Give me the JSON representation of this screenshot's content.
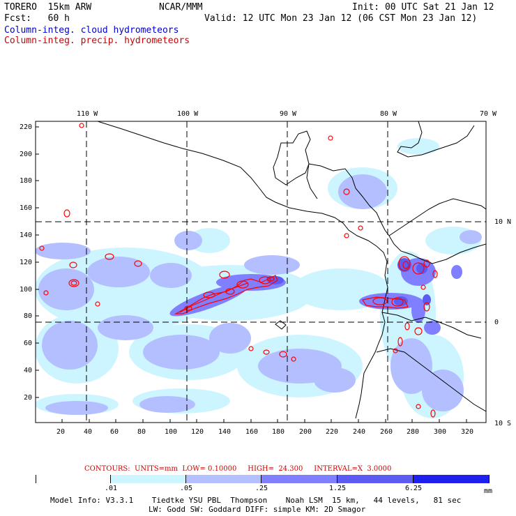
{
  "header": {
    "model_name": "TORERO  15km ARW",
    "center": "NCAR/MMM",
    "init": "Init: 00 UTC Sat 21 Jan 12",
    "forecast": "Fcst:   60 h",
    "valid": "Valid: 12 UTC Mon 23 Jan 12 (06 CST Mon 23 Jan 12)",
    "field1": "Column-integ. cloud hydrometeors",
    "field2": "Column-integ. precip. hydrometeors",
    "field1_color": "#1a1acc",
    "field2_color": "#dd0000"
  },
  "map": {
    "lon_labels": [
      "110 W",
      "100 W",
      "90 W",
      "80 W",
      "70 W"
    ],
    "lat_labels": [
      "10 N",
      "0",
      "10 S"
    ],
    "x_ticks": [
      "20",
      "40",
      "60",
      "80",
      "100",
      "120",
      "140",
      "160",
      "180",
      "200",
      "220",
      "240",
      "260",
      "280",
      "300",
      "320"
    ],
    "y_ticks": [
      "220",
      "200",
      "180",
      "160",
      "140",
      "120",
      "100",
      "80",
      "60",
      "40",
      "20"
    ],
    "contour_color": "#ff0000",
    "fill_colors": [
      "#ccf5ff",
      "#b3bfff",
      "#7f7fff",
      "#5c5cf5",
      "#2020ee"
    ]
  },
  "footer": {
    "contours": "CONTOURS:  UNITS=mm  LOW= 0.10000     HIGH=  24.300     INTERVAL=X  3.0000",
    "legend_ticks": [
      ".01",
      ".05",
      ".25",
      "1.25",
      "6.25"
    ],
    "legend_unit": "mm",
    "legend_colors": [
      "#ffffff",
      "#ccf5ff",
      "#b3bfff",
      "#7f7fff",
      "#5c5cf5",
      "#2020ee"
    ],
    "model_info_1": "Model Info: V3.3.1    Tiedtke YSU PBL  Thompson    Noah LSM  15 km,   44 levels,   81 sec",
    "model_info_2": "LW: Godd SW: Goddard DIFF: simple KM: 2D Smagor"
  }
}
